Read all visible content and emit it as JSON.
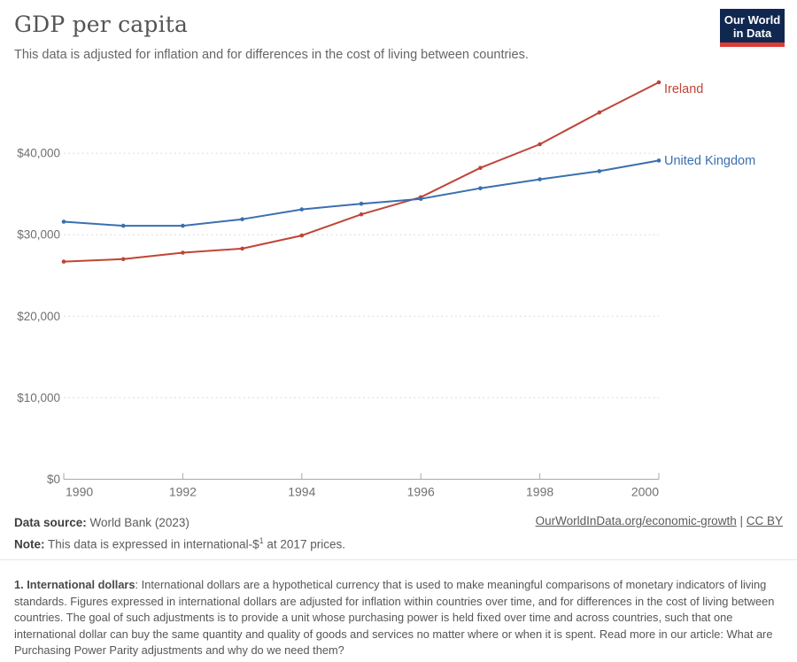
{
  "header": {
    "title": "GDP per capita",
    "subtitle": "This data is adjusted for inflation and for differences in the cost of living between countries.",
    "logo": {
      "line1": "Our World",
      "line2": "in Data",
      "bg_color": "#102850",
      "accent_color": "#dc3c37"
    }
  },
  "chart_data": {
    "type": "line",
    "title": "GDP per capita",
    "x": [
      1990,
      1991,
      1992,
      1993,
      1994,
      1995,
      1996,
      1997,
      1998,
      1999,
      2000
    ],
    "series": [
      {
        "id": "ireland",
        "name": "Ireland",
        "color": "#bf4537",
        "values": [
          26700,
          27000,
          27800,
          28300,
          29900,
          32500,
          34600,
          38200,
          41100,
          45000,
          48700
        ]
      },
      {
        "id": "united-kingdom",
        "name": "United Kingdom",
        "color": "#3a6fb0",
        "values": [
          31600,
          31100,
          31100,
          31900,
          33100,
          33800,
          34400,
          35700,
          36800,
          37800,
          39100
        ]
      }
    ],
    "xlim": [
      1990,
      2000
    ],
    "ylim": [
      0,
      49500
    ],
    "y_ticks": [
      {
        "value": 0,
        "label": "$0"
      },
      {
        "value": 10000,
        "label": "$10,000"
      },
      {
        "value": 20000,
        "label": "$20,000"
      },
      {
        "value": 30000,
        "label": "$30,000"
      },
      {
        "value": 40000,
        "label": "$40,000"
      }
    ],
    "x_ticks": [
      {
        "value": 1990,
        "label": "1990"
      },
      {
        "value": 1992,
        "label": "1992"
      },
      {
        "value": 1994,
        "label": "1994"
      },
      {
        "value": 1996,
        "label": "1996"
      },
      {
        "value": 1998,
        "label": "1998"
      },
      {
        "value": 2000,
        "label": "2000"
      }
    ],
    "grid": "horizontal-dotted",
    "legend": "end-of-line-labels",
    "unit": "international-$ at 2017 prices"
  },
  "footer": {
    "source_label": "Data source:",
    "source_value": " World Bank (2023)",
    "note_label": "Note:",
    "note_pre": " This data is expressed in international-$",
    "note_sup": "1",
    "note_post": " at 2017 prices.",
    "link": "OurWorldInData.org/economic-growth",
    "separator": " | ",
    "license": "CC BY"
  },
  "footnote": {
    "heading": "1. International dollars",
    "body": ": International dollars are a hypothetical currency that is used to make meaningful comparisons of monetary indicators of living standards. Figures expressed in international dollars are adjusted for inflation within countries over time, and for differences in the cost of living between countries. The goal of such adjustments is to provide a unit whose purchasing power is held fixed over time and across countries, such that one international dollar can buy the same quantity and quality of goods and services no matter where or when it is spent. Read more in our article: ",
    "link_text": "What are Purchasing Power Parity adjustments and why do we need them?"
  }
}
